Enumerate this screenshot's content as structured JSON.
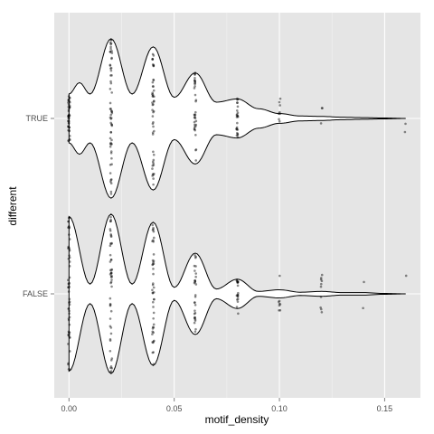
{
  "chart_data": {
    "type": "violin",
    "orientation": "horizontal",
    "xlabel": "motif_density",
    "ylabel": "different",
    "xlim": [
      -0.007,
      0.167
    ],
    "x_ticks": [
      {
        "value": 0.0,
        "label": "0.00"
      },
      {
        "value": 0.05,
        "label": "0.05"
      },
      {
        "value": 0.1,
        "label": "0.10"
      },
      {
        "value": 0.15,
        "label": "0.15"
      }
    ],
    "categories": [
      "TRUE",
      "FALSE"
    ],
    "grid": true,
    "legend": "none",
    "colors": {
      "panel_background": "#e5e5e5",
      "grid_major": "#ffffff",
      "grid_minor": "#f2f2f2",
      "violin_fill": "#ffffff",
      "violin_outline": "#000000",
      "points": "#000000"
    },
    "series": [
      {
        "category": "TRUE",
        "density_profile": [
          [
            0.0,
            0.3
          ],
          [
            0.005,
            0.44
          ],
          [
            0.01,
            0.3
          ],
          [
            0.02,
            0.98
          ],
          [
            0.03,
            0.3
          ],
          [
            0.04,
            0.88
          ],
          [
            0.05,
            0.26
          ],
          [
            0.06,
            0.56
          ],
          [
            0.07,
            0.2
          ],
          [
            0.08,
            0.24
          ],
          [
            0.09,
            0.12
          ],
          [
            0.1,
            0.06
          ],
          [
            0.11,
            0.03
          ],
          [
            0.12,
            0.025
          ],
          [
            0.13,
            0.015
          ],
          [
            0.14,
            0.01
          ],
          [
            0.15,
            0.005
          ],
          [
            0.16,
            0.0
          ]
        ],
        "points": [
          {
            "x": 0.0,
            "n": 45
          },
          {
            "x": 0.02,
            "n": 60
          },
          {
            "x": 0.04,
            "n": 50
          },
          {
            "x": 0.06,
            "n": 35
          },
          {
            "x": 0.08,
            "n": 25
          },
          {
            "x": 0.1,
            "n": 8
          },
          {
            "x": 0.12,
            "n": 3
          },
          {
            "x": 0.16,
            "n": 2
          }
        ]
      },
      {
        "category": "FALSE",
        "density_profile": [
          [
            0.0,
            0.95
          ],
          [
            0.01,
            0.12
          ],
          [
            0.02,
            0.98
          ],
          [
            0.03,
            0.12
          ],
          [
            0.04,
            0.88
          ],
          [
            0.05,
            0.08
          ],
          [
            0.06,
            0.5
          ],
          [
            0.07,
            0.06
          ],
          [
            0.08,
            0.18
          ],
          [
            0.09,
            0.03
          ],
          [
            0.1,
            0.05
          ],
          [
            0.11,
            0.02
          ],
          [
            0.12,
            0.03
          ],
          [
            0.13,
            0.015
          ],
          [
            0.14,
            0.015
          ],
          [
            0.15,
            0.005
          ],
          [
            0.16,
            0.0
          ]
        ],
        "points": [
          {
            "x": 0.0,
            "n": 55
          },
          {
            "x": 0.02,
            "n": 50
          },
          {
            "x": 0.04,
            "n": 45
          },
          {
            "x": 0.06,
            "n": 30
          },
          {
            "x": 0.08,
            "n": 20
          },
          {
            "x": 0.1,
            "n": 8
          },
          {
            "x": 0.12,
            "n": 10
          },
          {
            "x": 0.14,
            "n": 2
          },
          {
            "x": 0.16,
            "n": 1
          }
        ]
      }
    ]
  }
}
